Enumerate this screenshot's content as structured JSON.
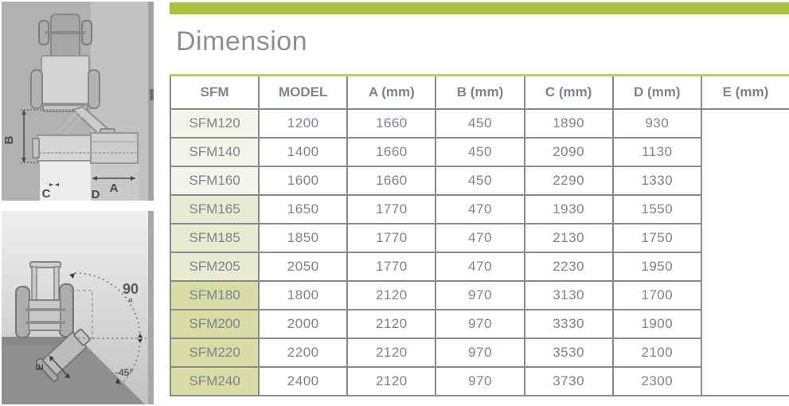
{
  "header": {
    "title": "Dimension"
  },
  "colors": {
    "accent_green_bar": "#a6c13f",
    "table_top_line": "#bdd058",
    "grid_line": "#8a8a8a",
    "text_gray": "#7c838d",
    "model_bg_light": "#f4f4eb",
    "model_bg_mid": "#e8ebd1",
    "model_bg_dark": "#d8dda6",
    "diagram_bg": "#b1b1b1"
  },
  "table": {
    "group_label": "SFM",
    "columns": [
      "MODEL",
      "A (mm)",
      "B (mm)",
      "C (mm)",
      "D (mm)",
      "E (mm)"
    ],
    "rows": [
      {
        "model": "SFM120",
        "a": "1200",
        "b": "1660",
        "c": "450",
        "d": "1890",
        "e": "930",
        "tier": "light"
      },
      {
        "model": "SFM140",
        "a": "1400",
        "b": "1660",
        "c": "450",
        "d": "2090",
        "e": "1130",
        "tier": "light"
      },
      {
        "model": "SFM160",
        "a": "1600",
        "b": "1660",
        "c": "450",
        "d": "2290",
        "e": "1330",
        "tier": "light"
      },
      {
        "model": "SFM165",
        "a": "1650",
        "b": "1770",
        "c": "470",
        "d": "1930",
        "e": "1550",
        "tier": "mid"
      },
      {
        "model": "SFM185",
        "a": "1850",
        "b": "1770",
        "c": "470",
        "d": "2130",
        "e": "1750",
        "tier": "mid"
      },
      {
        "model": "SFM205",
        "a": "2050",
        "b": "1770",
        "c": "470",
        "d": "2230",
        "e": "1950",
        "tier": "mid"
      },
      {
        "model": "SFM180",
        "a": "1800",
        "b": "2120",
        "c": "970",
        "d": "3130",
        "e": "1700",
        "tier": "dark"
      },
      {
        "model": "SFM200",
        "a": "2000",
        "b": "2120",
        "c": "970",
        "d": "3330",
        "e": "1900",
        "tier": "dark"
      },
      {
        "model": "SFM220",
        "a": "2200",
        "b": "2120",
        "c": "970",
        "d": "3530",
        "e": "2100",
        "tier": "dark"
      },
      {
        "model": "SFM240",
        "a": "2400",
        "b": "2120",
        "c": "970",
        "d": "3730",
        "e": "2300",
        "tier": "dark"
      }
    ]
  },
  "diagrams": {
    "top_view": {
      "dim_b": "B",
      "dim_c": "C",
      "dim_d": "D",
      "dim_a": "A"
    },
    "slope_view": {
      "angle_max": "90",
      "degree_symbol": "°",
      "angle_min": "-45°",
      "dim_e": "E"
    }
  }
}
